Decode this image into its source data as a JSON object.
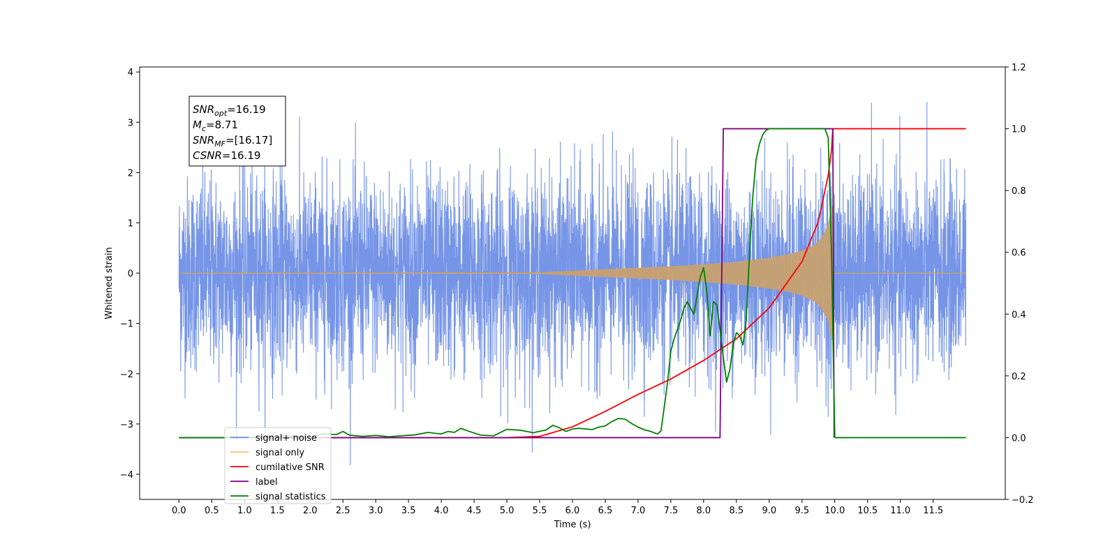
{
  "chart_data": {
    "type": "line",
    "xlabel": "Time (s)",
    "ylabel": "Whitened strain",
    "xlim": [
      -0.6,
      12.6
    ],
    "ylim": [
      -4.5,
      4.1
    ],
    "y2lim": [
      -0.2,
      1.2
    ],
    "x_ticks": [
      "0.0",
      "0.5",
      "1.0",
      "1.5",
      "2.0",
      "2.5",
      "3.0",
      "3.5",
      "4.0",
      "4.5",
      "5.0",
      "5.5",
      "6.0",
      "6.5",
      "7.0",
      "7.5",
      "8.0",
      "8.5",
      "9.0",
      "9.5",
      "10.0",
      "10.5",
      "11.0",
      "11.5"
    ],
    "y_ticks": [
      "4",
      "3",
      "2",
      "1",
      "0",
      "−1",
      "−2",
      "−3",
      "−4"
    ],
    "y2_ticks": [
      "1.2",
      "1.0",
      "0.8",
      "0.6",
      "0.4",
      "0.2",
      "0.0",
      "−0.2"
    ],
    "annotation": {
      "lines": [
        {
          "sym": "SNR",
          "sub": "opt",
          "value": "=16.19"
        },
        {
          "sym": "M",
          "sub": "c",
          "value": "=8.71"
        },
        {
          "sym": "SNR",
          "sub": "MF",
          "value": "=[16.17]"
        },
        {
          "sym": "CSNR",
          "sub": "",
          "value": "=16.19"
        }
      ]
    },
    "legend": {
      "position": "lower-left",
      "entries": [
        {
          "label": "signal+ noise",
          "color": "#6f8fe6"
        },
        {
          "label": "signal only",
          "color": "#ffc26b"
        },
        {
          "label": "cumilative SNR",
          "color": "#ff0000"
        },
        {
          "label": "label",
          "color": "#800080"
        },
        {
          "label": "signal statistics",
          "color": "#008000"
        }
      ]
    },
    "series": [
      {
        "name": "signal+ noise",
        "axis": "left",
        "color": "#6f8fe6",
        "x_range": [
          0.0,
          12.0
        ],
        "amplitude_std": 1.0,
        "y_min": -4.1,
        "y_max": 3.7
      },
      {
        "name": "signal only",
        "axis": "left",
        "color": "#c8a070",
        "envelope": {
          "x": [
            0.0,
            5.5,
            6.0,
            6.5,
            7.0,
            7.5,
            8.0,
            8.5,
            9.0,
            9.3,
            9.5,
            9.7,
            9.8,
            9.9,
            9.95,
            9.98
          ],
          "amplitude": [
            0.0,
            0.01,
            0.04,
            0.07,
            0.1,
            0.13,
            0.17,
            0.22,
            0.3,
            0.37,
            0.44,
            0.56,
            0.7,
            0.95,
            1.3,
            1.35
          ]
        }
      },
      {
        "name": "cumilative SNR",
        "axis": "right",
        "color": "#ff0000",
        "x": [
          0.0,
          5.0,
          5.5,
          6.0,
          6.5,
          7.0,
          7.5,
          8.0,
          8.5,
          9.0,
          9.5,
          9.75,
          9.9,
          9.95,
          9.97,
          12.0
        ],
        "y": [
          0.0,
          0.0,
          0.004,
          0.035,
          0.085,
          0.14,
          0.19,
          0.25,
          0.32,
          0.42,
          0.57,
          0.7,
          0.85,
          0.93,
          1.0,
          1.0
        ]
      },
      {
        "name": "label",
        "axis": "right",
        "color": "#800080",
        "x": [
          0.0,
          8.25,
          8.3,
          9.97,
          9.99
        ],
        "y": [
          0.0,
          0.0,
          1.0,
          1.0,
          0.0
        ]
      },
      {
        "name": "signal statistics",
        "axis": "right",
        "color": "#008000",
        "x": [
          0.0,
          0.5,
          1.0,
          1.5,
          2.0,
          2.2,
          2.4,
          2.5,
          2.6,
          2.8,
          3.0,
          3.2,
          3.4,
          3.6,
          3.8,
          3.9,
          4.0,
          4.1,
          4.2,
          4.3,
          4.4,
          4.6,
          4.8,
          5.0,
          5.2,
          5.4,
          5.6,
          5.7,
          5.8,
          5.9,
          6.0,
          6.1,
          6.2,
          6.3,
          6.4,
          6.5,
          6.6,
          6.7,
          6.8,
          6.9,
          7.0,
          7.1,
          7.2,
          7.25,
          7.3,
          7.35,
          7.4,
          7.45,
          7.5,
          7.55,
          7.6,
          7.65,
          7.7,
          7.75,
          7.8,
          7.85,
          7.9,
          7.95,
          8.0,
          8.05,
          8.1,
          8.15,
          8.2,
          8.25,
          8.3,
          8.35,
          8.4,
          8.45,
          8.5,
          8.55,
          8.6,
          8.65,
          8.7,
          8.75,
          8.8,
          8.85,
          8.9,
          8.95,
          9.0,
          9.1,
          9.2,
          9.4,
          9.6,
          9.8,
          9.85,
          9.9,
          9.95,
          10.0,
          12.0
        ],
        "y": [
          0.0,
          0.0,
          0.0,
          0.005,
          0.003,
          0.012,
          0.01,
          0.02,
          0.008,
          0.004,
          0.007,
          0.003,
          0.006,
          0.009,
          0.017,
          0.014,
          0.012,
          0.02,
          0.017,
          0.03,
          0.022,
          0.008,
          0.006,
          0.027,
          0.024,
          0.016,
          0.025,
          0.04,
          0.032,
          0.02,
          0.028,
          0.03,
          0.028,
          0.026,
          0.034,
          0.038,
          0.052,
          0.062,
          0.06,
          0.046,
          0.034,
          0.025,
          0.02,
          0.015,
          0.012,
          0.022,
          0.1,
          0.18,
          0.28,
          0.32,
          0.35,
          0.38,
          0.42,
          0.44,
          0.42,
          0.4,
          0.46,
          0.52,
          0.55,
          0.47,
          0.33,
          0.44,
          0.43,
          0.35,
          0.26,
          0.18,
          0.22,
          0.3,
          0.34,
          0.33,
          0.3,
          0.38,
          0.6,
          0.78,
          0.9,
          0.95,
          0.98,
          0.995,
          1.0,
          1.0,
          1.0,
          1.0,
          1.0,
          1.0,
          1.0,
          0.97,
          0.6,
          0.0,
          0.0
        ]
      }
    ]
  }
}
